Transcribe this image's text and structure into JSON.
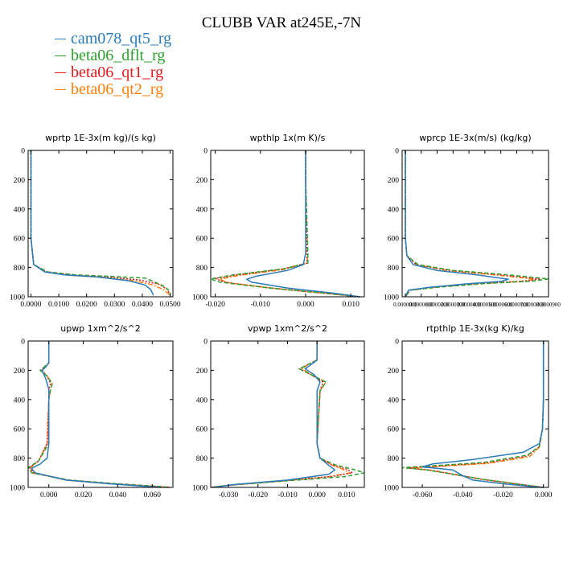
{
  "title": "CLUBB VAR at245E,-7N",
  "legend": [
    {
      "name": "cam078_qt5_rg",
      "color": "#2b7bba",
      "dash": "none"
    },
    {
      "name": "beta06_dflt_rg",
      "color": "#2ca02c",
      "dash": "5,3"
    },
    {
      "name": "beta06_qt1_rg",
      "color": "#e31a1c",
      "dash": "2,2"
    },
    {
      "name": "beta06_qt2_rg",
      "color": "#ff7f0e",
      "dash": "6,2,2,2"
    }
  ],
  "chart_data": [
    {
      "type": "line",
      "title": "wprtp  1E-3x(m kg)/(s kg)",
      "xlim": [
        -0.001,
        0.051
      ],
      "ylim": [
        1000,
        0
      ],
      "xticks": [
        0,
        0.01,
        0.02,
        0.03,
        0.04,
        0.05
      ],
      "xtick_labels": [
        "0.0000",
        "0.0100",
        "0.0200",
        "0.0300",
        "0.0400",
        "0.0500"
      ],
      "yticks": [
        0,
        200,
        400,
        600,
        800,
        1000
      ],
      "series": [
        {
          "name": "cam078_qt5_rg",
          "x": [
            0,
            0,
            0,
            0.001,
            0.005,
            0.012,
            0.024,
            0.035,
            0.041,
            0.043,
            0.044
          ],
          "y": [
            0,
            200,
            600,
            780,
            830,
            850,
            865,
            890,
            920,
            950,
            990
          ]
        },
        {
          "name": "beta06_dflt_rg",
          "x": [
            0,
            0,
            0,
            0.001,
            0.006,
            0.016,
            0.03,
            0.041,
            0.044,
            0.048,
            0.05,
            0.05
          ],
          "y": [
            0,
            200,
            600,
            780,
            830,
            850,
            862,
            872,
            895,
            930,
            965,
            990
          ]
        },
        {
          "name": "beta06_qt1_rg",
          "x": [
            0,
            0,
            0,
            0.001,
            0.006,
            0.015,
            0.028,
            0.039,
            0.046,
            0.049,
            0.05
          ],
          "y": [
            0,
            200,
            600,
            780,
            830,
            850,
            865,
            885,
            915,
            950,
            990
          ]
        },
        {
          "name": "beta06_qt2_rg",
          "x": [
            0,
            0,
            0,
            0.001,
            0.005,
            0.013,
            0.026,
            0.037,
            0.044,
            0.048,
            0.05
          ],
          "y": [
            0,
            200,
            600,
            780,
            830,
            852,
            868,
            890,
            920,
            955,
            990
          ]
        }
      ]
    },
    {
      "type": "line",
      "title": "wpthlp  1x(m K)/s",
      "xlim": [
        -0.021,
        0.013
      ],
      "ylim": [
        1000,
        0
      ],
      "xticks": [
        -0.02,
        -0.01,
        0,
        0.01
      ],
      "xtick_labels": [
        "-0.020",
        "-0.010",
        "0.000",
        "0.010"
      ],
      "yticks": [
        0,
        200,
        400,
        600,
        800,
        1000
      ],
      "series": [
        {
          "name": "cam078_qt5_rg",
          "x": [
            0,
            0,
            0,
            -0.0005,
            -0.004,
            -0.011,
            -0.013,
            -0.012,
            -0.004,
            0.006,
            0.012
          ],
          "y": [
            0,
            200,
            700,
            780,
            820,
            860,
            880,
            900,
            940,
            975,
            1000
          ]
        },
        {
          "name": "beta06_dflt_rg",
          "x": [
            0,
            0,
            0.0005,
            0.0005,
            -0.005,
            -0.016,
            -0.021,
            -0.019,
            -0.008,
            0.004,
            0.012
          ],
          "y": [
            0,
            200,
            700,
            770,
            810,
            850,
            878,
            900,
            940,
            975,
            1000
          ]
        },
        {
          "name": "beta06_qt1_rg",
          "x": [
            0,
            0,
            0.0003,
            0.0003,
            -0.005,
            -0.015,
            -0.02,
            -0.018,
            -0.008,
            0.004,
            0.012
          ],
          "y": [
            0,
            200,
            700,
            770,
            810,
            850,
            875,
            900,
            940,
            975,
            1000
          ]
        },
        {
          "name": "beta06_qt2_rg",
          "x": [
            0,
            0,
            0.0004,
            0.0004,
            -0.005,
            -0.015,
            -0.019,
            -0.017,
            -0.007,
            0.004,
            0.012
          ],
          "y": [
            0,
            200,
            700,
            770,
            815,
            855,
            880,
            905,
            942,
            976,
            1000
          ]
        }
      ]
    },
    {
      "type": "line",
      "title": "wprcp  1E-3x(m/s) (kg/kg)",
      "xlim": [
        -2e-06,
        9e-05
      ],
      "ylim": [
        1000,
        0
      ],
      "xticks": [
        0,
        1e-05,
        2e-05,
        3e-05,
        4e-05,
        5e-05,
        6e-05,
        7e-05,
        8e-05,
        9e-05
      ],
      "xtick_labels": [
        "0.0000000",
        "0.0000100",
        "0.0000200",
        "0.0000300",
        "0.0000400",
        "0.0000500",
        "0.0000600",
        "0.0000700",
        "0.0000800",
        "0.0000900"
      ],
      "yticks": [
        0,
        200,
        400,
        600,
        800,
        1000
      ],
      "series": [
        {
          "name": "cam078_qt5_rg",
          "x": [
            0,
            0,
            0,
            1e-06,
            5e-06,
            2e-05,
            4.5e-05,
            6.5e-05,
            6e-05,
            4e-05,
            1.5e-05,
            2e-06,
            0
          ],
          "y": [
            0,
            200,
            600,
            720,
            780,
            820,
            850,
            880,
            895,
            910,
            935,
            955,
            1000
          ]
        },
        {
          "name": "beta06_dflt_rg",
          "x": [
            0,
            0,
            0,
            1e-06,
            8e-06,
            3e-05,
            6.5e-05,
            9e-05,
            8e-05,
            5e-05,
            2e-05,
            3e-06,
            0
          ],
          "y": [
            0,
            200,
            600,
            720,
            780,
            820,
            850,
            878,
            893,
            910,
            935,
            955,
            1000
          ]
        },
        {
          "name": "beta06_qt1_rg",
          "x": [
            0,
            0,
            0,
            1e-06,
            7e-06,
            2.8e-05,
            6e-05,
            8.5e-05,
            7.5e-05,
            4.5e-05,
            1.8e-05,
            3e-06,
            0
          ],
          "y": [
            0,
            200,
            600,
            720,
            780,
            820,
            850,
            878,
            893,
            910,
            935,
            955,
            1000
          ]
        },
        {
          "name": "beta06_qt2_rg",
          "x": [
            0,
            0,
            0,
            1e-06,
            7e-06,
            2.7e-05,
            5.8e-05,
            8.2e-05,
            7.2e-05,
            4.3e-05,
            1.7e-05,
            3e-06,
            0
          ],
          "y": [
            0,
            200,
            600,
            720,
            780,
            822,
            852,
            880,
            895,
            912,
            936,
            956,
            1000
          ]
        }
      ]
    },
    {
      "type": "line",
      "title": "upwp  1xm^2/s^2",
      "xlim": [
        -0.012,
        0.072
      ],
      "ylim": [
        1000,
        0
      ],
      "xticks": [
        0,
        0.02,
        0.04,
        0.06
      ],
      "xtick_labels": [
        "0.000",
        "0.020",
        "0.040",
        "0.060"
      ],
      "yticks": [
        0,
        200,
        400,
        600,
        800,
        1000
      ],
      "series": [
        {
          "name": "cam078_qt5_rg",
          "x": [
            0,
            0,
            -0.002,
            -0.004,
            -0.002,
            -0.001,
            0,
            0,
            -0.001,
            -0.005,
            -0.01,
            -0.008,
            0.01,
            0.035,
            0.055,
            0.065
          ],
          "y": [
            0,
            150,
            180,
            200,
            250,
            290,
            330,
            700,
            800,
            840,
            870,
            900,
            950,
            975,
            992,
            1000
          ]
        },
        {
          "name": "beta06_dflt_rg",
          "x": [
            0,
            0,
            -0.003,
            -0.005,
            -0.001,
            0.002,
            0.001,
            0,
            0,
            -0.006,
            -0.012,
            -0.01,
            0.012,
            0.04,
            0.062,
            0.07
          ],
          "y": [
            0,
            150,
            180,
            200,
            240,
            290,
            330,
            400,
            700,
            820,
            865,
            900,
            950,
            975,
            992,
            1000
          ]
        },
        {
          "name": "beta06_qt1_rg",
          "x": [
            0,
            0,
            -0.003,
            -0.004,
            -0.001,
            0.001,
            0,
            0,
            -0.001,
            -0.006,
            -0.011,
            -0.009,
            0.011,
            0.038,
            0.06,
            0.07
          ],
          "y": [
            0,
            150,
            180,
            200,
            240,
            290,
            330,
            400,
            700,
            820,
            865,
            900,
            950,
            975,
            992,
            1000
          ]
        },
        {
          "name": "beta06_qt2_rg",
          "x": [
            0,
            0,
            -0.003,
            -0.004,
            -0.001,
            0.002,
            0.001,
            0,
            -0.001,
            -0.006,
            -0.011,
            -0.009,
            0.011,
            0.037,
            0.058,
            0.07
          ],
          "y": [
            0,
            150,
            180,
            200,
            240,
            290,
            330,
            400,
            700,
            820,
            868,
            902,
            952,
            976,
            993,
            1000
          ]
        }
      ]
    },
    {
      "type": "line",
      "title": "vpwp  1xm^2/s^2",
      "xlim": [
        -0.036,
        0.016
      ],
      "ylim": [
        1000,
        0
      ],
      "xticks": [
        -0.03,
        -0.02,
        -0.01,
        0,
        0.01
      ],
      "xtick_labels": [
        "-0.030",
        "-0.020",
        "-0.010",
        "0.000",
        "0.010"
      ],
      "yticks": [
        0,
        200,
        400,
        600,
        800,
        1000
      ],
      "series": [
        {
          "name": "cam078_qt5_rg",
          "x": [
            0,
            0,
            -0.002,
            -0.004,
            -0.001,
            0.001,
            0,
            0,
            0.001,
            0.004,
            0.006,
            0.004,
            -0.01,
            -0.028,
            -0.035
          ],
          "y": [
            0,
            130,
            160,
            190,
            230,
            280,
            340,
            700,
            800,
            850,
            880,
            910,
            950,
            980,
            1000
          ]
        },
        {
          "name": "beta06_dflt_rg",
          "x": [
            0,
            0,
            -0.003,
            -0.006,
            -0.002,
            0.003,
            0.001,
            0,
            0.001,
            0.006,
            0.012,
            0.016,
            0.01,
            -0.01,
            -0.03,
            -0.036
          ],
          "y": [
            0,
            130,
            160,
            190,
            230,
            280,
            340,
            700,
            800,
            845,
            875,
            900,
            925,
            955,
            985,
            1000
          ]
        },
        {
          "name": "beta06_qt1_rg",
          "x": [
            0,
            0,
            -0.003,
            -0.006,
            -0.002,
            0.002,
            0.001,
            0,
            0.001,
            0.005,
            0.01,
            0.012,
            0.005,
            -0.012,
            -0.03,
            -0.036
          ],
          "y": [
            0,
            130,
            160,
            190,
            230,
            280,
            340,
            700,
            800,
            845,
            875,
            900,
            925,
            955,
            985,
            1000
          ]
        },
        {
          "name": "beta06_qt2_rg",
          "x": [
            0,
            0,
            -0.003,
            -0.005,
            -0.002,
            0.003,
            0.001,
            0,
            0.001,
            0.005,
            0.009,
            0.011,
            0.004,
            -0.012,
            -0.03,
            -0.036
          ],
          "y": [
            0,
            130,
            160,
            190,
            230,
            280,
            340,
            700,
            800,
            848,
            878,
            902,
            927,
            957,
            986,
            1000
          ]
        }
      ]
    },
    {
      "type": "line",
      "title": "rtpthlp  1E-3x(kg K)/kg",
      "xlim": [
        -0.07,
        0.0025
      ],
      "ylim": [
        1000,
        0
      ],
      "xticks": [
        -0.06,
        -0.04,
        -0.02,
        0
      ],
      "xtick_labels": [
        "-0.060",
        "-0.040",
        "-0.020",
        "0.000"
      ],
      "yticks": [
        0,
        200,
        400,
        600,
        800,
        1000
      ],
      "series": [
        {
          "name": "cam078_qt5_rg",
          "x": [
            0,
            0,
            -0.0005,
            -0.002,
            -0.01,
            -0.035,
            -0.055,
            -0.06,
            -0.045,
            -0.04,
            -0.035,
            -0.02,
            -0.005,
            0
          ],
          "y": [
            0,
            400,
            600,
            700,
            760,
            810,
            840,
            860,
            880,
            920,
            950,
            975,
            995,
            1000
          ]
        },
        {
          "name": "beta06_dflt_rg",
          "x": [
            0,
            0,
            -0.0005,
            -0.002,
            -0.008,
            -0.03,
            -0.058,
            -0.07,
            -0.058,
            -0.045,
            -0.03,
            -0.012,
            0
          ],
          "y": [
            0,
            400,
            600,
            720,
            780,
            830,
            855,
            865,
            880,
            910,
            945,
            978,
            1000
          ]
        },
        {
          "name": "beta06_qt1_rg",
          "x": [
            0,
            0,
            -0.0005,
            -0.002,
            -0.008,
            -0.028,
            -0.056,
            -0.068,
            -0.056,
            -0.044,
            -0.03,
            -0.012,
            0
          ],
          "y": [
            0,
            400,
            600,
            720,
            785,
            832,
            857,
            866,
            882,
            912,
            946,
            978,
            1000
          ]
        },
        {
          "name": "beta06_qt2_rg",
          "x": [
            0,
            0,
            -0.0005,
            -0.002,
            -0.007,
            -0.027,
            -0.055,
            -0.067,
            -0.055,
            -0.043,
            -0.029,
            -0.012,
            0
          ],
          "y": [
            0,
            400,
            600,
            725,
            790,
            835,
            860,
            868,
            884,
            914,
            948,
            979,
            1000
          ]
        }
      ]
    }
  ]
}
